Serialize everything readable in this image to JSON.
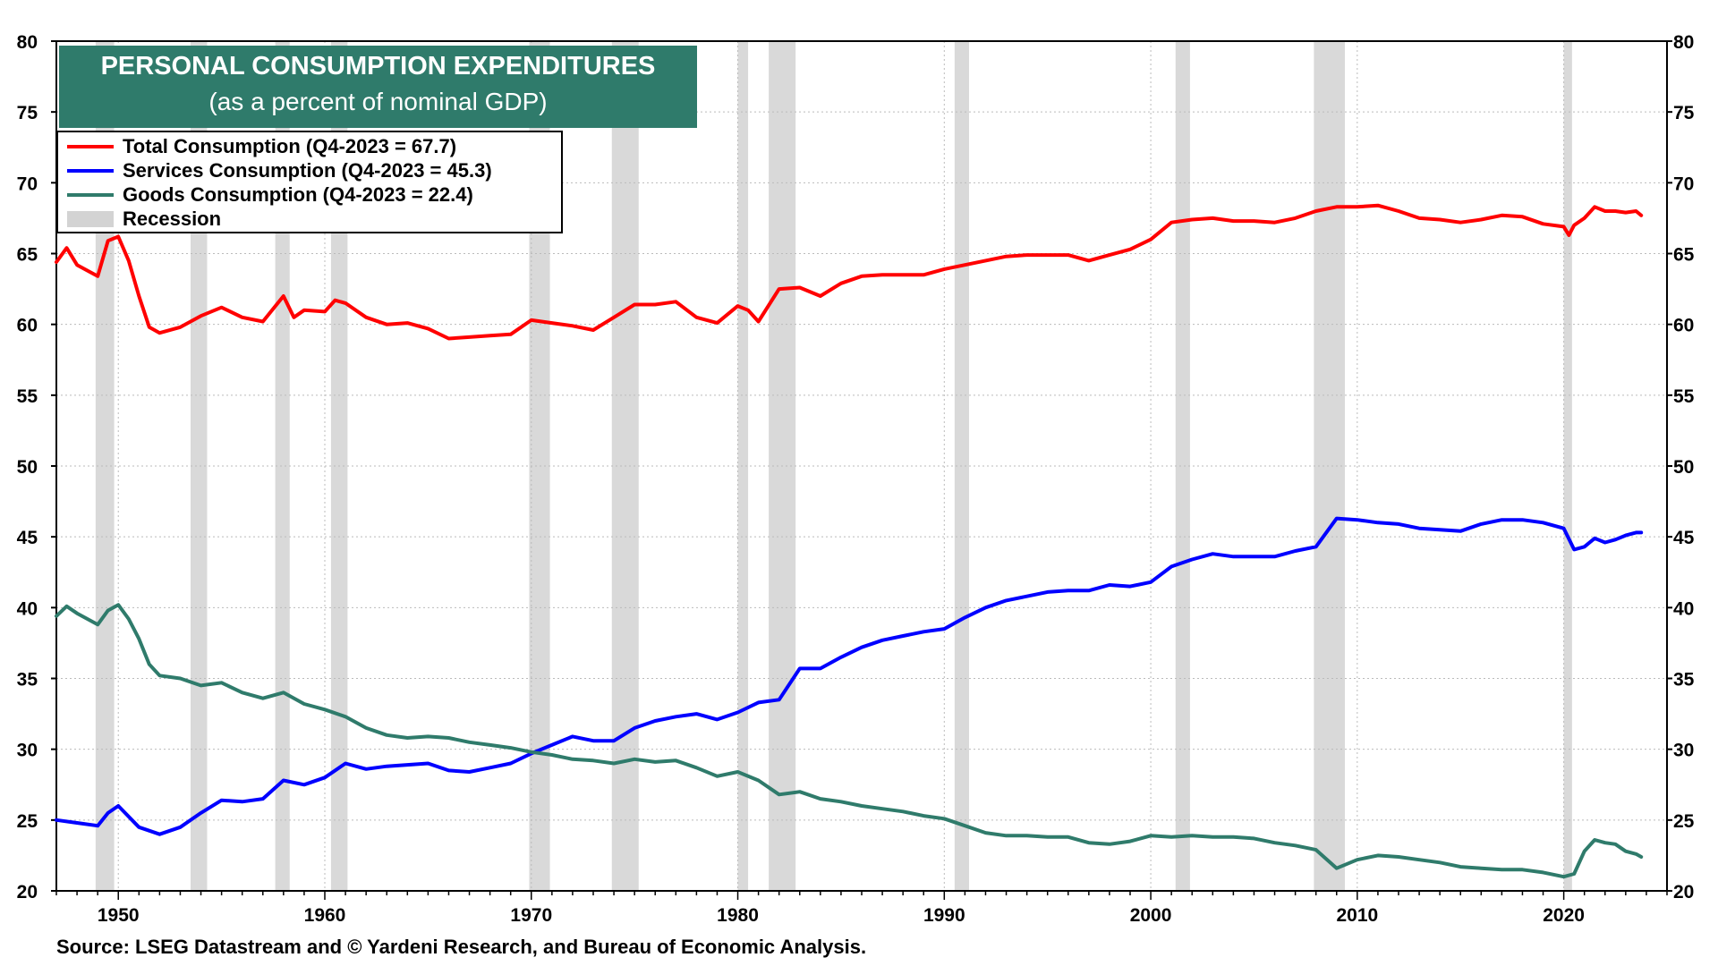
{
  "title": {
    "line1": "PERSONAL CONSUMPTION EXPENDITURES",
    "line2": "(as a percent of nominal GDP)"
  },
  "legend": {
    "items": [
      {
        "label": "Total Consumption (Q4-2023 = 67.7)",
        "color": "#ff0000"
      },
      {
        "label": "Services Consumption (Q4-2023 = 45.3)",
        "color": "#0000ff"
      },
      {
        "label": "Goods Consumption (Q4-2023 = 22.4)",
        "color": "#2f7b6b"
      },
      {
        "label": "Recession",
        "color": "#d3d3d3"
      }
    ]
  },
  "source": "Source: LSEG Datastream and © Yardeni Research, and Bureau of Economic Analysis.",
  "colors": {
    "title_bg": "#2f7b6b",
    "recession": "#d9d9d9",
    "grid": "#bbbbbb"
  },
  "chart_data": {
    "type": "line",
    "title": "PERSONAL CONSUMPTION EXPENDITURES (as a percent of nominal GDP)",
    "xlabel": "",
    "ylabel": "",
    "xlim": [
      1947,
      2025
    ],
    "ylim": [
      20,
      80
    ],
    "x_ticks": [
      1950,
      1960,
      1970,
      1980,
      1990,
      2000,
      2010,
      2020
    ],
    "y_ticks": [
      20,
      25,
      30,
      35,
      40,
      45,
      50,
      55,
      60,
      65,
      70,
      75,
      80
    ],
    "grid": true,
    "recessions": [
      [
        1948.9,
        1949.8
      ],
      [
        1953.5,
        1954.3
      ],
      [
        1957.6,
        1958.3
      ],
      [
        1960.3,
        1961.1
      ],
      [
        1969.9,
        1970.9
      ],
      [
        1973.9,
        1975.2
      ],
      [
        1980.0,
        1980.5
      ],
      [
        1981.5,
        1982.8
      ],
      [
        1990.5,
        1991.2
      ],
      [
        2001.2,
        2001.9
      ],
      [
        2007.9,
        2009.4
      ],
      [
        2020.0,
        2020.4
      ]
    ],
    "series": [
      {
        "name": "Total Consumption",
        "color": "#ff0000",
        "x": [
          1947.0,
          1947.5,
          1948.0,
          1948.5,
          1949.0,
          1949.5,
          1950.0,
          1950.5,
          1951.0,
          1951.5,
          1952.0,
          1953.0,
          1954.0,
          1955.0,
          1956.0,
          1957.0,
          1958.0,
          1958.5,
          1959.0,
          1960.0,
          1960.5,
          1961.0,
          1962.0,
          1963.0,
          1964.0,
          1965.0,
          1966.0,
          1967.0,
          1968.0,
          1969.0,
          1970.0,
          1971.0,
          1972.0,
          1973.0,
          1974.0,
          1975.0,
          1976.0,
          1977.0,
          1978.0,
          1979.0,
          1980.0,
          1980.5,
          1981.0,
          1982.0,
          1983.0,
          1984.0,
          1985.0,
          1986.0,
          1987.0,
          1988.0,
          1989.0,
          1990.0,
          1991.0,
          1992.0,
          1993.0,
          1994.0,
          1995.0,
          1996.0,
          1997.0,
          1998.0,
          1999.0,
          2000.0,
          2001.0,
          2002.0,
          2003.0,
          2004.0,
          2005.0,
          2006.0,
          2007.0,
          2008.0,
          2009.0,
          2010.0,
          2011.0,
          2012.0,
          2013.0,
          2014.0,
          2015.0,
          2016.0,
          2017.0,
          2018.0,
          2019.0,
          2020.0,
          2020.25,
          2020.5,
          2021.0,
          2021.5,
          2022.0,
          2022.5,
          2023.0,
          2023.5,
          2023.75
        ],
        "values": [
          64.4,
          65.4,
          64.2,
          63.8,
          63.4,
          65.9,
          66.2,
          64.5,
          62.0,
          59.8,
          59.4,
          59.8,
          60.6,
          61.2,
          60.5,
          60.2,
          62.0,
          60.5,
          61.0,
          60.9,
          61.7,
          61.5,
          60.5,
          60.0,
          60.1,
          59.7,
          59.0,
          59.1,
          59.2,
          59.3,
          60.3,
          60.1,
          59.9,
          59.6,
          60.5,
          61.4,
          61.4,
          61.6,
          60.5,
          60.1,
          61.3,
          61.0,
          60.2,
          62.5,
          62.6,
          62.0,
          62.9,
          63.4,
          63.5,
          63.5,
          63.5,
          63.9,
          64.2,
          64.5,
          64.8,
          64.9,
          64.9,
          64.9,
          64.5,
          64.9,
          65.3,
          66.0,
          67.2,
          67.4,
          67.5,
          67.3,
          67.3,
          67.2,
          67.5,
          68.0,
          68.3,
          68.3,
          68.4,
          68.0,
          67.5,
          67.4,
          67.2,
          67.4,
          67.7,
          67.6,
          67.1,
          66.9,
          66.3,
          67.0,
          67.5,
          68.3,
          68.0,
          68.0,
          67.9,
          68.0,
          67.7
        ]
      },
      {
        "name": "Services Consumption",
        "color": "#0000ff",
        "x": [
          1947.0,
          1948.0,
          1949.0,
          1949.5,
          1950.0,
          1951.0,
          1952.0,
          1953.0,
          1954.0,
          1955.0,
          1956.0,
          1957.0,
          1958.0,
          1959.0,
          1960.0,
          1961.0,
          1962.0,
          1963.0,
          1964.0,
          1965.0,
          1966.0,
          1967.0,
          1968.0,
          1969.0,
          1970.0,
          1971.0,
          1972.0,
          1973.0,
          1974.0,
          1975.0,
          1976.0,
          1977.0,
          1978.0,
          1979.0,
          1980.0,
          1981.0,
          1982.0,
          1983.0,
          1984.0,
          1985.0,
          1986.0,
          1987.0,
          1988.0,
          1989.0,
          1990.0,
          1991.0,
          1992.0,
          1993.0,
          1994.0,
          1995.0,
          1996.0,
          1997.0,
          1998.0,
          1999.0,
          2000.0,
          2001.0,
          2002.0,
          2003.0,
          2004.0,
          2005.0,
          2006.0,
          2007.0,
          2008.0,
          2009.0,
          2010.0,
          2011.0,
          2012.0,
          2013.0,
          2014.0,
          2015.0,
          2016.0,
          2017.0,
          2018.0,
          2019.0,
          2020.0,
          2020.5,
          2021.0,
          2021.5,
          2022.0,
          2022.5,
          2023.0,
          2023.5,
          2023.75
        ],
        "values": [
          25.0,
          24.8,
          24.6,
          25.5,
          26.0,
          24.5,
          24.0,
          24.5,
          25.5,
          26.4,
          26.3,
          26.5,
          27.8,
          27.5,
          28.0,
          29.0,
          28.6,
          28.8,
          28.9,
          29.0,
          28.5,
          28.4,
          28.7,
          29.0,
          29.7,
          30.3,
          30.9,
          30.6,
          30.6,
          31.5,
          32.0,
          32.3,
          32.5,
          32.1,
          32.6,
          33.3,
          33.5,
          35.7,
          35.7,
          36.5,
          37.2,
          37.7,
          38.0,
          38.3,
          38.5,
          39.3,
          40.0,
          40.5,
          40.8,
          41.1,
          41.2,
          41.2,
          41.6,
          41.5,
          41.8,
          42.9,
          43.4,
          43.8,
          43.6,
          43.6,
          43.6,
          44.0,
          44.3,
          46.3,
          46.2,
          46.0,
          45.9,
          45.6,
          45.5,
          45.4,
          45.9,
          46.2,
          46.2,
          46.0,
          45.6,
          44.1,
          44.3,
          44.9,
          44.6,
          44.8,
          45.1,
          45.3,
          45.3
        ]
      },
      {
        "name": "Goods Consumption",
        "color": "#2f7b6b",
        "x": [
          1947.0,
          1947.5,
          1948.0,
          1949.0,
          1949.5,
          1950.0,
          1950.5,
          1951.0,
          1951.5,
          1952.0,
          1953.0,
          1954.0,
          1955.0,
          1956.0,
          1957.0,
          1958.0,
          1959.0,
          1960.0,
          1961.0,
          1962.0,
          1963.0,
          1964.0,
          1965.0,
          1966.0,
          1967.0,
          1968.0,
          1969.0,
          1970.0,
          1971.0,
          1972.0,
          1973.0,
          1974.0,
          1975.0,
          1976.0,
          1977.0,
          1978.0,
          1979.0,
          1980.0,
          1981.0,
          1982.0,
          1983.0,
          1984.0,
          1985.0,
          1986.0,
          1987.0,
          1988.0,
          1989.0,
          1990.0,
          1991.0,
          1992.0,
          1993.0,
          1994.0,
          1995.0,
          1996.0,
          1997.0,
          1998.0,
          1999.0,
          2000.0,
          2001.0,
          2002.0,
          2003.0,
          2004.0,
          2005.0,
          2006.0,
          2007.0,
          2008.0,
          2009.0,
          2010.0,
          2011.0,
          2012.0,
          2013.0,
          2014.0,
          2015.0,
          2016.0,
          2017.0,
          2018.0,
          2019.0,
          2020.0,
          2020.5,
          2021.0,
          2021.5,
          2022.0,
          2022.5,
          2023.0,
          2023.5,
          2023.75
        ],
        "values": [
          39.4,
          40.1,
          39.6,
          38.8,
          39.8,
          40.2,
          39.2,
          37.8,
          36.0,
          35.2,
          35.0,
          34.5,
          34.7,
          34.0,
          33.6,
          34.0,
          33.2,
          32.8,
          32.3,
          31.5,
          31.0,
          30.8,
          30.9,
          30.8,
          30.5,
          30.3,
          30.1,
          29.8,
          29.6,
          29.3,
          29.2,
          29.0,
          29.3,
          29.1,
          29.2,
          28.7,
          28.1,
          28.4,
          27.8,
          26.8,
          27.0,
          26.5,
          26.3,
          26.0,
          25.8,
          25.6,
          25.3,
          25.1,
          24.6,
          24.1,
          23.9,
          23.9,
          23.8,
          23.8,
          23.4,
          23.3,
          23.5,
          23.9,
          23.8,
          23.9,
          23.8,
          23.8,
          23.7,
          23.4,
          23.2,
          22.9,
          21.6,
          22.2,
          22.5,
          22.4,
          22.2,
          22.0,
          21.7,
          21.6,
          21.5,
          21.5,
          21.3,
          21.0,
          21.2,
          22.8,
          23.6,
          23.4,
          23.3,
          22.8,
          22.6,
          22.4
        ]
      }
    ]
  }
}
